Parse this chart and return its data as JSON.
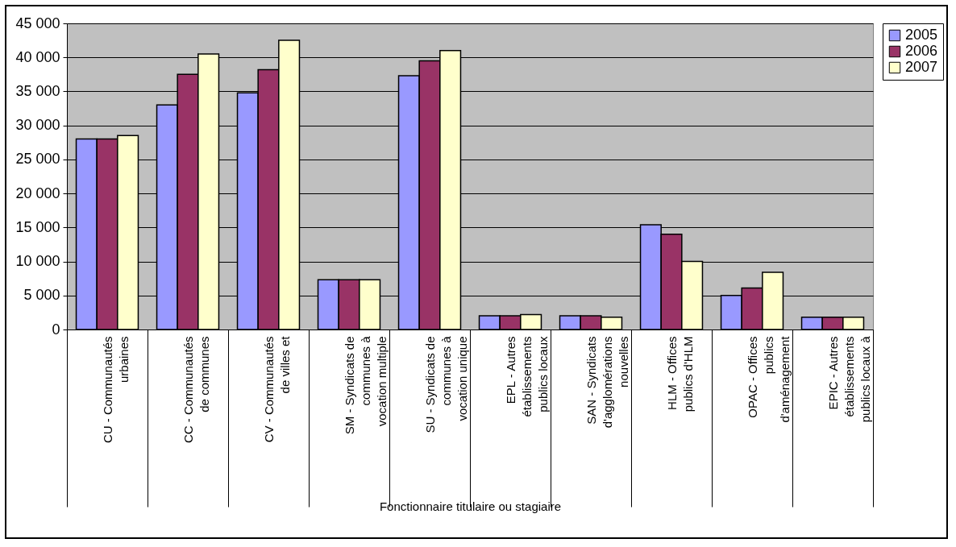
{
  "chart_data": {
    "type": "bar",
    "xlabel": "Fonctionnaire titulaire ou stagiaire",
    "categories": [
      "CU - Communautés urbaines",
      "CC - Communautés de communes",
      "CV - Communautés de villes et",
      "SM - Syndicats de communes à vocation multiple",
      "SU - Syndicats de communes à vocation unique",
      "EPL - Autres établissements publics locaux",
      "SAN - Syndicats d'agglomérations nouvelles",
      "HLM - Offices publics d'HLM",
      "OPAC - Offices publics d'aménagement",
      "EPIC - Autres établissements publics locaux à"
    ],
    "series": [
      {
        "name": "2005",
        "color": "#9999ff",
        "values": [
          28000,
          33000,
          34800,
          7300,
          37300,
          2000,
          2000,
          15400,
          5000,
          1800
        ]
      },
      {
        "name": "2006",
        "color": "#993366",
        "values": [
          28000,
          37500,
          38200,
          7300,
          39500,
          2000,
          2000,
          14000,
          6100,
          1800
        ]
      },
      {
        "name": "2007",
        "color": "#ffffcc",
        "values": [
          28500,
          40500,
          42500,
          7300,
          41000,
          2200,
          1800,
          10000,
          8400,
          1800
        ]
      }
    ],
    "ylim": [
      0,
      45000
    ],
    "yticks": [
      {
        "value": 0,
        "label": "0"
      },
      {
        "value": 5000,
        "label": "5 000"
      },
      {
        "value": 10000,
        "label": "10 000"
      },
      {
        "value": 15000,
        "label": "15 000"
      },
      {
        "value": 20000,
        "label": "20 000"
      },
      {
        "value": 25000,
        "label": "25 000"
      },
      {
        "value": 30000,
        "label": "30 000"
      },
      {
        "value": 35000,
        "label": "35 000"
      },
      {
        "value": 40000,
        "label": "40 000"
      },
      {
        "value": 45000,
        "label": "45 000"
      }
    ],
    "grid": "y",
    "legend": "right"
  }
}
